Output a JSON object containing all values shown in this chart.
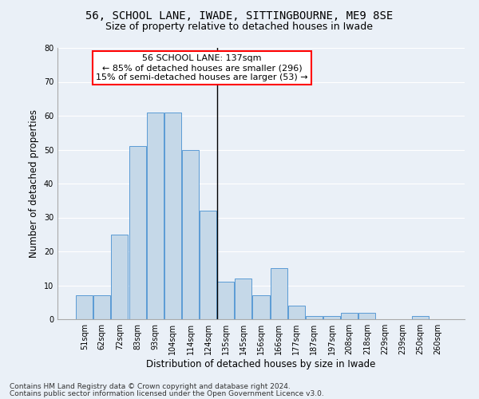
{
  "title": "56, SCHOOL LANE, IWADE, SITTINGBOURNE, ME9 8SE",
  "subtitle": "Size of property relative to detached houses in Iwade",
  "xlabel": "Distribution of detached houses by size in Iwade",
  "ylabel": "Number of detached properties",
  "bin_labels": [
    "51sqm",
    "62sqm",
    "72sqm",
    "83sqm",
    "93sqm",
    "104sqm",
    "114sqm",
    "124sqm",
    "135sqm",
    "145sqm",
    "156sqm",
    "166sqm",
    "177sqm",
    "187sqm",
    "197sqm",
    "208sqm",
    "218sqm",
    "229sqm",
    "239sqm",
    "250sqm",
    "260sqm"
  ],
  "bar_heights": [
    7,
    7,
    25,
    51,
    61,
    61,
    50,
    32,
    11,
    12,
    7,
    15,
    4,
    1,
    1,
    2,
    2,
    0,
    0,
    1,
    0
  ],
  "bar_color": "#c5d8e8",
  "bar_edge_color": "#5b9bd5",
  "vline_index": 8,
  "annotation_box_text_line1": "56 SCHOOL LANE: 137sqm",
  "annotation_box_text_line2": "← 85% of detached houses are smaller (296)",
  "annotation_box_text_line3": "15% of semi-detached houses are larger (53) →",
  "annotation_box_color": "white",
  "annotation_box_edge_color": "red",
  "vline_color": "black",
  "ylim": [
    0,
    80
  ],
  "yticks": [
    0,
    10,
    20,
    30,
    40,
    50,
    60,
    70,
    80
  ],
  "footnote1": "Contains HM Land Registry data © Crown copyright and database right 2024.",
  "footnote2": "Contains public sector information licensed under the Open Government Licence v3.0.",
  "bg_color": "#eaf0f7",
  "grid_color": "#ffffff",
  "title_fontsize": 10,
  "subtitle_fontsize": 9,
  "axis_label_fontsize": 8.5,
  "tick_fontsize": 7,
  "annotation_fontsize": 8,
  "footnote_fontsize": 6.5
}
